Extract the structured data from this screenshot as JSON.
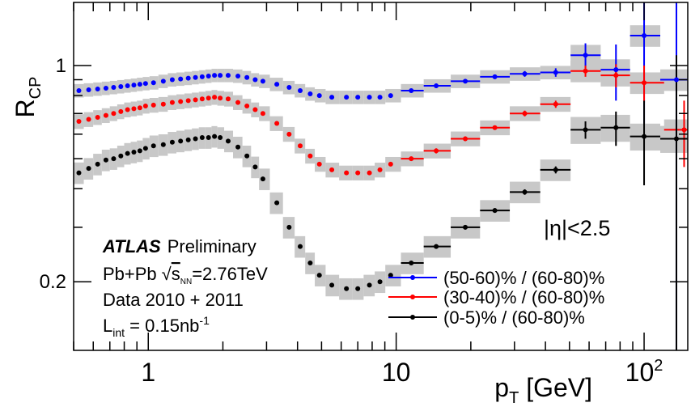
{
  "chart_data": {
    "type": "scatter",
    "experiment": "ATLAS",
    "status": "Preliminary",
    "system": "Pb+Pb",
    "sqrt_s_symbol": "s",
    "sqrt_s_subscript": "NN",
    "sqrt_s_value": "=2.76TeV",
    "data_label": "Data 2010 + 2011",
    "lumi_symbol": "L",
    "lumi_subscript": "int",
    "lumi_value": " = 0.15nb",
    "lumi_exponent": "-1",
    "eta_cut": "|η|<2.5",
    "ylabel_main": "R",
    "ylabel_sub": "CP",
    "xlabel_main": "p",
    "xlabel_sub": "T",
    "xlabel_unit": " [GeV]",
    "xscale": "log",
    "yscale": "log",
    "xlim": [
      0.5,
      150
    ],
    "ylim": [
      0.12,
      1.6
    ],
    "xticks": [
      {
        "value": 1,
        "label": "1"
      },
      {
        "value": 10,
        "label": "10"
      },
      {
        "value": 100,
        "label": "10",
        "exponent": "2"
      }
    ],
    "yticks": [
      {
        "value": 0.2,
        "label": "0.2"
      },
      {
        "value": 1,
        "label": "1"
      }
    ],
    "legend_position": "bottom-right",
    "series": [
      {
        "name": "(50-60)% / (60-80)%",
        "color": "#0000ff",
        "x": [
          0.525,
          0.575,
          0.625,
          0.675,
          0.725,
          0.775,
          0.825,
          0.875,
          0.925,
          0.975,
          1.05,
          1.15,
          1.25,
          1.35,
          1.45,
          1.55,
          1.65,
          1.75,
          1.85,
          1.95,
          2.1,
          2.3,
          2.5,
          2.7,
          2.9,
          3.3,
          3.7,
          4.1,
          4.5,
          4.9,
          5.5,
          6.3,
          7.0,
          7.8,
          8.6,
          9.5,
          11.5,
          14.5,
          19.0,
          25.0,
          33.0,
          44.0,
          58.0,
          77.0,
          100.0,
          135.0
        ],
        "y": [
          0.83,
          0.835,
          0.84,
          0.845,
          0.85,
          0.855,
          0.86,
          0.865,
          0.87,
          0.875,
          0.88,
          0.89,
          0.9,
          0.905,
          0.91,
          0.915,
          0.92,
          0.925,
          0.93,
          0.93,
          0.93,
          0.925,
          0.915,
          0.9,
          0.89,
          0.87,
          0.85,
          0.83,
          0.81,
          0.8,
          0.79,
          0.79,
          0.79,
          0.79,
          0.79,
          0.8,
          0.83,
          0.86,
          0.89,
          0.92,
          0.94,
          0.95,
          1.08,
          0.97,
          1.25,
          0.9
        ],
        "yerr": [
          0,
          0,
          0,
          0,
          0,
          0,
          0,
          0,
          0,
          0,
          0,
          0,
          0,
          0,
          0,
          0,
          0,
          0,
          0,
          0,
          0,
          0,
          0,
          0,
          0,
          0,
          0,
          0,
          0,
          0,
          0,
          0,
          0,
          0,
          0,
          0,
          0.01,
          0.01,
          0.01,
          0.015,
          0.02,
          0.03,
          0.1,
          0.2,
          0.6,
          1.5
        ],
        "sys": [
          0.05,
          0.05,
          0.05,
          0.05,
          0.05,
          0.05,
          0.05,
          0.05,
          0.05,
          0.05,
          0.05,
          0.05,
          0.05,
          0.05,
          0.05,
          0.05,
          0.05,
          0.05,
          0.05,
          0.05,
          0.05,
          0.05,
          0.05,
          0.05,
          0.05,
          0.05,
          0.05,
          0.05,
          0.05,
          0.05,
          0.05,
          0.05,
          0.05,
          0.05,
          0.05,
          0.05,
          0.05,
          0.05,
          0.05,
          0.05,
          0.05,
          0.05,
          0.08,
          0.08,
          0.08,
          0.08
        ]
      },
      {
        "name": "(30-40)% / (60-80)%",
        "color": "#ff0000",
        "x": [
          0.525,
          0.575,
          0.625,
          0.675,
          0.725,
          0.775,
          0.825,
          0.875,
          0.925,
          0.975,
          1.05,
          1.15,
          1.25,
          1.35,
          1.45,
          1.55,
          1.65,
          1.75,
          1.85,
          1.95,
          2.1,
          2.3,
          2.5,
          2.7,
          2.9,
          3.3,
          3.7,
          4.1,
          4.5,
          4.9,
          5.5,
          6.3,
          7.0,
          7.8,
          8.6,
          9.5,
          11.5,
          14.5,
          19.0,
          25.0,
          33.0,
          44.0,
          58.0,
          77.0,
          100.0,
          145.0
        ],
        "y": [
          0.66,
          0.67,
          0.68,
          0.69,
          0.7,
          0.71,
          0.72,
          0.725,
          0.73,
          0.74,
          0.745,
          0.75,
          0.76,
          0.765,
          0.77,
          0.775,
          0.78,
          0.785,
          0.79,
          0.785,
          0.78,
          0.76,
          0.74,
          0.72,
          0.7,
          0.65,
          0.6,
          0.55,
          0.51,
          0.48,
          0.46,
          0.45,
          0.45,
          0.45,
          0.46,
          0.48,
          0.5,
          0.53,
          0.58,
          0.63,
          0.7,
          0.75,
          0.96,
          0.93,
          0.88,
          0.62
        ],
        "yerr": [
          0,
          0,
          0,
          0,
          0,
          0,
          0,
          0,
          0,
          0,
          0,
          0,
          0,
          0,
          0,
          0,
          0,
          0,
          0,
          0,
          0,
          0,
          0,
          0,
          0,
          0,
          0,
          0,
          0,
          0,
          0,
          0,
          0,
          0,
          0,
          0,
          0.005,
          0.01,
          0.01,
          0.01,
          0.015,
          0.02,
          0.04,
          0.08,
          0.12,
          0.15
        ],
        "sys": [
          0.055,
          0.055,
          0.055,
          0.055,
          0.055,
          0.055,
          0.055,
          0.055,
          0.055,
          0.055,
          0.055,
          0.055,
          0.055,
          0.055,
          0.055,
          0.055,
          0.055,
          0.055,
          0.055,
          0.055,
          0.055,
          0.055,
          0.055,
          0.055,
          0.055,
          0.055,
          0.055,
          0.055,
          0.055,
          0.055,
          0.055,
          0.055,
          0.055,
          0.055,
          0.055,
          0.055,
          0.055,
          0.055,
          0.055,
          0.055,
          0.055,
          0.055,
          0.08,
          0.08,
          0.08,
          0.08
        ]
      },
      {
        "name": "(0-5)% / (60-80)%",
        "color": "#000000",
        "x": [
          0.525,
          0.575,
          0.625,
          0.675,
          0.725,
          0.775,
          0.825,
          0.875,
          0.925,
          0.975,
          1.05,
          1.15,
          1.25,
          1.35,
          1.45,
          1.55,
          1.65,
          1.75,
          1.85,
          1.95,
          2.1,
          2.3,
          2.5,
          2.7,
          2.9,
          3.3,
          3.7,
          4.1,
          4.5,
          4.9,
          5.5,
          6.3,
          7.0,
          7.8,
          8.6,
          9.5,
          11.5,
          14.5,
          19.0,
          25.0,
          33.0,
          44.0,
          58.0,
          77.0,
          100.0,
          135.0
        ],
        "y": [
          0.45,
          0.465,
          0.48,
          0.495,
          0.5,
          0.51,
          0.52,
          0.525,
          0.53,
          0.54,
          0.55,
          0.555,
          0.565,
          0.57,
          0.575,
          0.58,
          0.585,
          0.585,
          0.59,
          0.585,
          0.57,
          0.545,
          0.51,
          0.47,
          0.43,
          0.36,
          0.3,
          0.26,
          0.23,
          0.21,
          0.195,
          0.19,
          0.19,
          0.195,
          0.2,
          0.21,
          0.23,
          0.26,
          0.3,
          0.34,
          0.39,
          0.46,
          0.62,
          0.63,
          0.59,
          0.58
        ],
        "yerr": [
          0,
          0,
          0,
          0,
          0,
          0,
          0,
          0,
          0,
          0,
          0,
          0,
          0,
          0,
          0,
          0,
          0,
          0,
          0,
          0,
          0,
          0,
          0,
          0,
          0,
          0,
          0,
          0,
          0,
          0,
          0,
          0,
          0,
          0,
          0,
          0,
          0.003,
          0.004,
          0.005,
          0.006,
          0.008,
          0.012,
          0.04,
          0.08,
          0.18,
          0.5
        ],
        "sys": [
          0.08,
          0.08,
          0.08,
          0.08,
          0.08,
          0.08,
          0.08,
          0.08,
          0.08,
          0.08,
          0.08,
          0.08,
          0.08,
          0.08,
          0.08,
          0.08,
          0.08,
          0.08,
          0.08,
          0.08,
          0.08,
          0.08,
          0.08,
          0.08,
          0.08,
          0.08,
          0.08,
          0.08,
          0.08,
          0.08,
          0.08,
          0.08,
          0.08,
          0.08,
          0.08,
          0.08,
          0.08,
          0.08,
          0.08,
          0.08,
          0.08,
          0.08,
          0.1,
          0.1,
          0.1,
          0.1
        ]
      }
    ]
  }
}
